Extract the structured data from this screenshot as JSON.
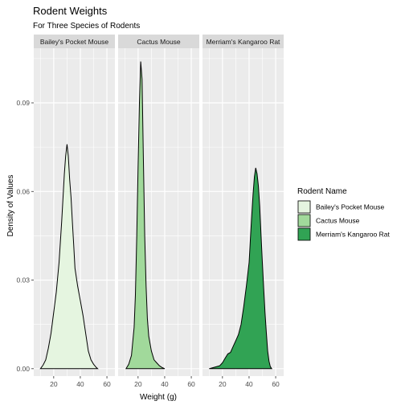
{
  "chart_data": {
    "type": "area",
    "title": "Rodent Weights",
    "subtitle": "For Three Species of Rodents",
    "xlabel": "Weight (g)",
    "ylabel": "Density of Values",
    "xlim": [
      5,
      66
    ],
    "ylim": [
      -0.0025,
      0.1085
    ],
    "x_ticks": [
      20,
      40,
      60
    ],
    "x_tick_labels": [
      "20",
      "40",
      "60"
    ],
    "y_ticks": [
      0,
      0.03,
      0.06,
      0.09
    ],
    "y_tick_labels": [
      "0.00",
      "0.03",
      "0.06",
      "0.09"
    ],
    "grid": true,
    "legend": {
      "title": "Rodent Name",
      "position": "right"
    },
    "panels": [
      {
        "name": "Bailey's Pocket Mouse",
        "fill": "#e5f5e0",
        "points": [
          [
            10,
            0
          ],
          [
            12,
            0.0012
          ],
          [
            14,
            0.003
          ],
          [
            16,
            0.007
          ],
          [
            18,
            0.012
          ],
          [
            20,
            0.019
          ],
          [
            22,
            0.026
          ],
          [
            24,
            0.036
          ],
          [
            26,
            0.05
          ],
          [
            28,
            0.066
          ],
          [
            29,
            0.072
          ],
          [
            30,
            0.076
          ],
          [
            31,
            0.072
          ],
          [
            32,
            0.064
          ],
          [
            33,
            0.058
          ],
          [
            34,
            0.05
          ],
          [
            35,
            0.042
          ],
          [
            36,
            0.034
          ],
          [
            38,
            0.028
          ],
          [
            40,
            0.023
          ],
          [
            42,
            0.018
          ],
          [
            44,
            0.012
          ],
          [
            46,
            0.006
          ],
          [
            48,
            0.003
          ],
          [
            50,
            0.0015
          ],
          [
            52,
            0.0004
          ],
          [
            53,
            0
          ]
        ]
      },
      {
        "name": "Cactus Mouse",
        "fill": "#a1d99b",
        "points": [
          [
            11,
            0
          ],
          [
            13,
            0.0015
          ],
          [
            15,
            0.0045
          ],
          [
            17,
            0.014
          ],
          [
            18,
            0.025
          ],
          [
            19,
            0.045
          ],
          [
            20,
            0.068
          ],
          [
            21,
            0.09
          ],
          [
            22,
            0.104
          ],
          [
            23,
            0.098
          ],
          [
            24,
            0.07
          ],
          [
            25,
            0.045
          ],
          [
            26,
            0.028
          ],
          [
            27,
            0.017
          ],
          [
            28,
            0.011
          ],
          [
            30,
            0.006
          ],
          [
            32,
            0.003
          ],
          [
            34,
            0.002
          ],
          [
            36,
            0.001
          ],
          [
            38,
            0.0004
          ],
          [
            40,
            0
          ]
        ]
      },
      {
        "name": "Merriam's Kangaroo Rat",
        "fill": "#31a354",
        "points": [
          [
            10,
            0
          ],
          [
            14,
            0.0005
          ],
          [
            18,
            0.001
          ],
          [
            20,
            0.002
          ],
          [
            22,
            0.0035
          ],
          [
            24,
            0.005
          ],
          [
            26,
            0.0055
          ],
          [
            28,
            0.0075
          ],
          [
            30,
            0.0095
          ],
          [
            32,
            0.0115
          ],
          [
            34,
            0.015
          ],
          [
            36,
            0.021
          ],
          [
            38,
            0.028
          ],
          [
            40,
            0.036
          ],
          [
            41,
            0.044
          ],
          [
            42,
            0.052
          ],
          [
            43,
            0.059
          ],
          [
            44,
            0.065
          ],
          [
            45,
            0.068
          ],
          [
            46,
            0.066
          ],
          [
            47,
            0.062
          ],
          [
            48,
            0.055
          ],
          [
            49,
            0.045
          ],
          [
            50,
            0.036
          ],
          [
            51,
            0.027
          ],
          [
            52,
            0.019
          ],
          [
            53,
            0.012
          ],
          [
            54,
            0.006
          ],
          [
            55,
            0.0025
          ],
          [
            56,
            0.0007
          ],
          [
            57,
            0
          ]
        ]
      }
    ]
  }
}
